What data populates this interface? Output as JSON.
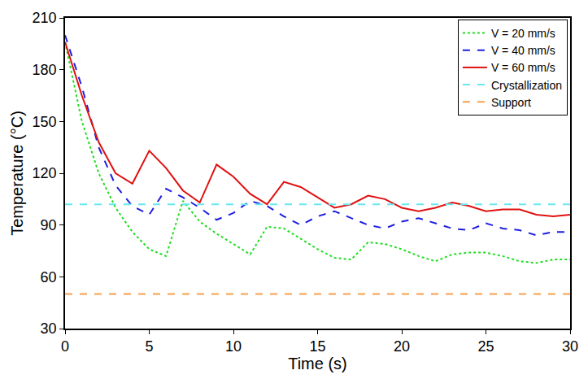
{
  "chart_data": {
    "type": "line",
    "x_label": "Time (s)",
    "y_label": "Temperature (°C)",
    "x": [
      0,
      1,
      2,
      3,
      4,
      5,
      6,
      7,
      8,
      9,
      10,
      11,
      12,
      13,
      14,
      15,
      16,
      17,
      18,
      19,
      20,
      21,
      22,
      23,
      24,
      25,
      26,
      27,
      28,
      29,
      30
    ],
    "series": [
      {
        "name": "V = 20 mm/s",
        "color": "#22dd22",
        "line_style": "dotted",
        "values": [
          196,
          150,
          120,
          100,
          86,
          76,
          72,
          104,
          92,
          85,
          79,
          73,
          89,
          88,
          82,
          76,
          71,
          70,
          80,
          79,
          76,
          72,
          69,
          73,
          74,
          74,
          72,
          69,
          68,
          70,
          70
        ]
      },
      {
        "name": "V = 40 mm/s",
        "color": "#1f1fe0",
        "line_style": "dashed",
        "values": [
          200,
          170,
          135,
          113,
          101,
          96,
          111,
          106,
          100,
          93,
          97,
          104,
          101,
          95,
          90,
          95,
          98,
          94,
          90,
          88,
          92,
          94,
          91,
          88,
          87,
          91,
          88,
          87,
          84,
          86,
          86
        ]
      },
      {
        "name": "V = 60 mm/s",
        "color": "#e01010",
        "line_style": "solid",
        "values": [
          196,
          165,
          138,
          120,
          114,
          133,
          123,
          110,
          103,
          125,
          118,
          108,
          102,
          115,
          112,
          106,
          100,
          102,
          107,
          105,
          100,
          98,
          100,
          103,
          101,
          98,
          99,
          99,
          96,
          95,
          96
        ]
      },
      {
        "name": "Crystallization",
        "color": "#66e8f0",
        "line_style": "dashed",
        "values": [
          102,
          102,
          102,
          102,
          102,
          102,
          102,
          102,
          102,
          102,
          102,
          102,
          102,
          102,
          102,
          102,
          102,
          102,
          102,
          102,
          102,
          102,
          102,
          102,
          102,
          102,
          102,
          102,
          102,
          102,
          102
        ]
      },
      {
        "name": "Support",
        "color": "#f5a050",
        "line_style": "dashed",
        "values": [
          50,
          50,
          50,
          50,
          50,
          50,
          50,
          50,
          50,
          50,
          50,
          50,
          50,
          50,
          50,
          50,
          50,
          50,
          50,
          50,
          50,
          50,
          50,
          50,
          50,
          50,
          50,
          50,
          50,
          50,
          50
        ]
      }
    ],
    "xlim": [
      0,
      30
    ],
    "xticks": [
      0,
      5,
      10,
      15,
      20,
      25,
      30
    ],
    "ylim": [
      30,
      210
    ],
    "yticks": [
      30,
      60,
      90,
      120,
      150,
      180,
      210
    ],
    "grid": false,
    "legend": "upper right"
  }
}
